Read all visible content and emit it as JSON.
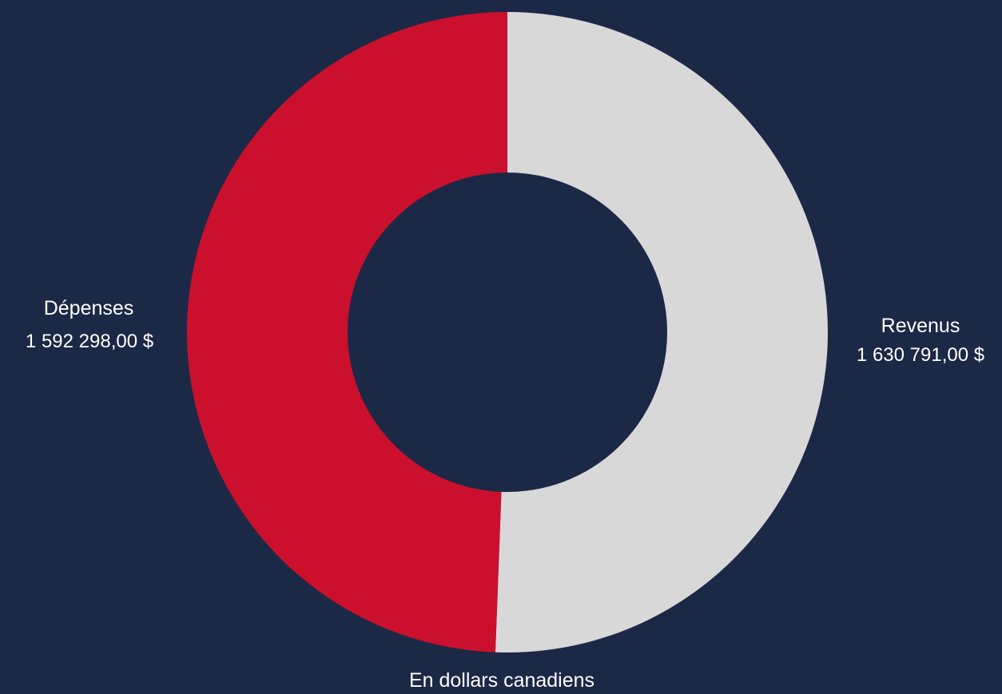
{
  "chart_data": {
    "type": "pie",
    "variant": "donut",
    "slices": [
      {
        "name": "Revenus",
        "value": 1630791.0,
        "value_label": "1 630 791,00 $",
        "color": "#d9d8d9"
      },
      {
        "name": "Dépenses",
        "value": 1592298.0,
        "value_label": "1 592 298,00 $",
        "color": "#cb102d"
      }
    ],
    "note": "En dollars canadiens",
    "background_color": "#1b2946"
  }
}
